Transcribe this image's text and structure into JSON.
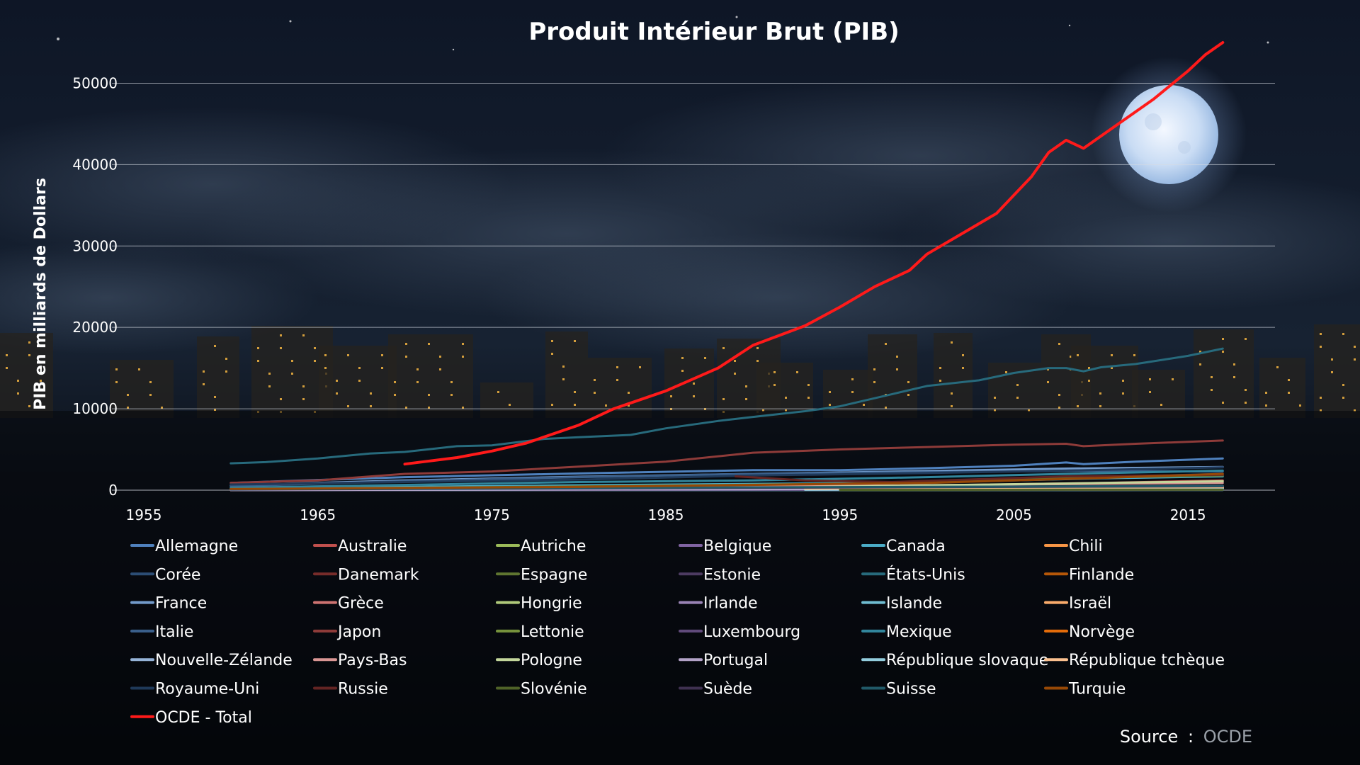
{
  "chart_data": {
    "type": "line",
    "title": "Produit Intérieur Brut (PIB)",
    "ylabel": "PIB en milliards de Dollars",
    "xlabel": "",
    "xlim": [
      1955,
      2020
    ],
    "ylim": [
      0,
      55000
    ],
    "x_ticks": [
      "1955",
      "1965",
      "1975",
      "1985",
      "1995",
      "2005",
      "2015"
    ],
    "y_ticks": [
      "0",
      "10000",
      "20000",
      "30000",
      "40000",
      "50000"
    ],
    "grid": true,
    "legend_position": "bottom",
    "source_label": "Source",
    "source_sep": ":",
    "source_value": "OCDE",
    "series": [
      {
        "name": "Allemagne",
        "color": "#4f81bd",
        "points": [
          [
            1960,
            900
          ],
          [
            1970,
            1600
          ],
          [
            1980,
            2050
          ],
          [
            1990,
            2450
          ],
          [
            1995,
            2450
          ],
          [
            2000,
            2700
          ],
          [
            2005,
            3000
          ],
          [
            2008,
            3400
          ],
          [
            2009,
            3200
          ],
          [
            2012,
            3500
          ],
          [
            2017,
            3900
          ]
        ]
      },
      {
        "name": "Australie",
        "color": "#c0504d",
        "points": [
          [
            1960,
            50
          ],
          [
            1980,
            200
          ],
          [
            2000,
            550
          ],
          [
            2010,
            900
          ],
          [
            2017,
            1200
          ]
        ]
      },
      {
        "name": "Autriche",
        "color": "#9bbb59",
        "points": [
          [
            1960,
            30
          ],
          [
            1990,
            200
          ],
          [
            2017,
            450
          ]
        ]
      },
      {
        "name": "Belgique",
        "color": "#8064a2",
        "points": [
          [
            1960,
            40
          ],
          [
            1990,
            250
          ],
          [
            2017,
            530
          ]
        ]
      },
      {
        "name": "Canada",
        "color": "#4bacc6",
        "points": [
          [
            1960,
            200
          ],
          [
            1980,
            600
          ],
          [
            2000,
            950
          ],
          [
            2010,
            1450
          ],
          [
            2017,
            1700
          ]
        ]
      },
      {
        "name": "Chili",
        "color": "#f79646",
        "points": [
          [
            1960,
            20
          ],
          [
            1990,
            100
          ],
          [
            2017,
            450
          ]
        ]
      },
      {
        "name": "Corée",
        "color": "#2c4d75",
        "points": [
          [
            1970,
            100
          ],
          [
            1990,
            550
          ],
          [
            2000,
            1000
          ],
          [
            2010,
            1600
          ],
          [
            2017,
            2000
          ]
        ]
      },
      {
        "name": "Danemark",
        "color": "#772c2a",
        "points": [
          [
            1960,
            30
          ],
          [
            1990,
            150
          ],
          [
            2017,
            300
          ]
        ]
      },
      {
        "name": "Espagne",
        "color": "#5f7530",
        "points": [
          [
            1960,
            150
          ],
          [
            1980,
            450
          ],
          [
            2000,
            900
          ],
          [
            2008,
            1500
          ],
          [
            2017,
            1800
          ]
        ]
      },
      {
        "name": "Estonie",
        "color": "#4d3b62",
        "points": [
          [
            1993,
            15
          ],
          [
            2017,
            45
          ]
        ]
      },
      {
        "name": "États-Unis",
        "color": "#276a7c",
        "points": [
          [
            1960,
            3300
          ],
          [
            1962,
            3450
          ],
          [
            1965,
            3900
          ],
          [
            1968,
            4500
          ],
          [
            1970,
            4700
          ],
          [
            1973,
            5400
          ],
          [
            1975,
            5500
          ],
          [
            1978,
            6300
          ],
          [
            1980,
            6500
          ],
          [
            1983,
            6800
          ],
          [
            1985,
            7600
          ],
          [
            1988,
            8500
          ],
          [
            1990,
            9000
          ],
          [
            1993,
            9700
          ],
          [
            1995,
            10300
          ],
          [
            1998,
            11800
          ],
          [
            2000,
            12800
          ],
          [
            2003,
            13500
          ],
          [
            2005,
            14400
          ],
          [
            2007,
            15000
          ],
          [
            2008,
            15000
          ],
          [
            2009,
            14600
          ],
          [
            2010,
            15100
          ],
          [
            2012,
            15500
          ],
          [
            2015,
            16500
          ],
          [
            2017,
            17400
          ]
        ]
      },
      {
        "name": "Finlande",
        "color": "#b65708",
        "points": [
          [
            1960,
            30
          ],
          [
            1990,
            150
          ],
          [
            2017,
            250
          ]
        ]
      },
      {
        "name": "France",
        "color": "#729aca",
        "points": [
          [
            1960,
            600
          ],
          [
            1970,
            1200
          ],
          [
            1980,
            1650
          ],
          [
            1990,
            2000
          ],
          [
            2000,
            2350
          ],
          [
            2008,
            2650
          ],
          [
            2017,
            2850
          ]
        ]
      },
      {
        "name": "Grèce",
        "color": "#cd7371",
        "points": [
          [
            1960,
            50
          ],
          [
            1990,
            200
          ],
          [
            2008,
            350
          ],
          [
            2017,
            280
          ]
        ]
      },
      {
        "name": "Hongrie",
        "color": "#afc97a",
        "points": [
          [
            1991,
            100
          ],
          [
            2017,
            260
          ]
        ]
      },
      {
        "name": "Irlande",
        "color": "#9983b5",
        "points": [
          [
            1960,
            15
          ],
          [
            1990,
            60
          ],
          [
            2017,
            350
          ]
        ]
      },
      {
        "name": "Islande",
        "color": "#6fbdd1",
        "points": [
          [
            1960,
            5
          ],
          [
            2017,
            17
          ]
        ]
      },
      {
        "name": "Israël",
        "color": "#f9ab6b",
        "points": [
          [
            1995,
            120
          ],
          [
            2017,
            320
          ]
        ]
      },
      {
        "name": "Italie",
        "color": "#3a5f8b",
        "points": [
          [
            1960,
            500
          ],
          [
            1970,
            1100
          ],
          [
            1980,
            1600
          ],
          [
            1990,
            2000
          ],
          [
            2000,
            2200
          ],
          [
            2008,
            2350
          ],
          [
            2017,
            2300
          ]
        ]
      },
      {
        "name": "Japon",
        "color": "#8e3b39",
        "points": [
          [
            1960,
            900
          ],
          [
            1965,
            1200
          ],
          [
            1970,
            2000
          ],
          [
            1975,
            2300
          ],
          [
            1980,
            2900
          ],
          [
            1985,
            3500
          ],
          [
            1990,
            4600
          ],
          [
            1995,
            5000
          ],
          [
            2000,
            5300
          ],
          [
            2005,
            5600
          ],
          [
            2008,
            5700
          ],
          [
            2009,
            5400
          ],
          [
            2012,
            5700
          ],
          [
            2017,
            6100
          ]
        ]
      },
      {
        "name": "Lettonie",
        "color": "#76923c",
        "points": [
          [
            1995,
            20
          ],
          [
            2017,
            50
          ]
        ]
      },
      {
        "name": "Luxembourg",
        "color": "#604a7b",
        "points": [
          [
            1960,
            5
          ],
          [
            2017,
            60
          ]
        ]
      },
      {
        "name": "Mexique",
        "color": "#31859c",
        "points": [
          [
            1960,
            300
          ],
          [
            1980,
            1000
          ],
          [
            1990,
            1200
          ],
          [
            2000,
            1600
          ],
          [
            2008,
            2000
          ],
          [
            2017,
            2400
          ]
        ]
      },
      {
        "name": "Norvège",
        "color": "#e46c0a",
        "points": [
          [
            1960,
            30
          ],
          [
            1990,
            150
          ],
          [
            2017,
            350
          ]
        ]
      },
      {
        "name": "Nouvelle-Zélande",
        "color": "#95b3d7",
        "points": [
          [
            1960,
            20
          ],
          [
            2017,
            190
          ]
        ]
      },
      {
        "name": "Pays-Bas",
        "color": "#d99694",
        "points": [
          [
            1960,
            100
          ],
          [
            1990,
            450
          ],
          [
            2017,
            900
          ]
        ]
      },
      {
        "name": "Pologne",
        "color": "#c3d69b",
        "points": [
          [
            1990,
            300
          ],
          [
            2017,
            1100
          ]
        ]
      },
      {
        "name": "Portugal",
        "color": "#b3a2c7",
        "points": [
          [
            1960,
            20
          ],
          [
            1990,
            120
          ],
          [
            2017,
            320
          ]
        ]
      },
      {
        "name": "République slovaque",
        "color": "#93cddd",
        "points": [
          [
            1993,
            50
          ],
          [
            2017,
            170
          ]
        ]
      },
      {
        "name": "République tchèque",
        "color": "#fac08f",
        "points": [
          [
            1993,
            170
          ],
          [
            2017,
            370
          ]
        ]
      },
      {
        "name": "Royaume-Uni",
        "color": "#1f3959",
        "points": [
          [
            1960,
            700
          ],
          [
            1970,
            1000
          ],
          [
            1980,
            1300
          ],
          [
            1990,
            1800
          ],
          [
            2000,
            2100
          ],
          [
            2008,
            2400
          ],
          [
            2017,
            2800
          ]
        ]
      },
      {
        "name": "Russie",
        "color": "#632423",
        "points": [
          [
            1989,
            1700
          ],
          [
            1993,
            1200
          ],
          [
            1998,
            1000
          ],
          [
            2008,
            1700
          ],
          [
            2017,
            1900
          ]
        ]
      },
      {
        "name": "Slovénie",
        "color": "#4f6228",
        "points": [
          [
            1995,
            40
          ],
          [
            2017,
            70
          ]
        ]
      },
      {
        "name": "Suède",
        "color": "#3f3151",
        "points": [
          [
            1960,
            80
          ],
          [
            1990,
            300
          ],
          [
            2017,
            480
          ]
        ]
      },
      {
        "name": "Suisse",
        "color": "#215968",
        "points": [
          [
            1960,
            100
          ],
          [
            1990,
            350
          ],
          [
            2017,
            520
          ]
        ]
      },
      {
        "name": "Turquie",
        "color": "#974806",
        "points": [
          [
            1960,
            150
          ],
          [
            1980,
            400
          ],
          [
            2000,
            900
          ],
          [
            2010,
            1500
          ],
          [
            2017,
            2000
          ]
        ]
      },
      {
        "name": "OCDE - Total",
        "color": "#ff1a1a",
        "points": [
          [
            1970,
            3200
          ],
          [
            1973,
            4000
          ],
          [
            1975,
            4800
          ],
          [
            1977,
            5800
          ],
          [
            1980,
            8000
          ],
          [
            1982,
            10000
          ],
          [
            1985,
            12200
          ],
          [
            1988,
            15000
          ],
          [
            1990,
            17800
          ],
          [
            1993,
            20200
          ],
          [
            1995,
            22500
          ],
          [
            1997,
            25000
          ],
          [
            1999,
            27000
          ],
          [
            2000,
            29000
          ],
          [
            2002,
            31500
          ],
          [
            2004,
            34000
          ],
          [
            2006,
            38500
          ],
          [
            2007,
            41500
          ],
          [
            2008,
            43000
          ],
          [
            2009,
            42000
          ],
          [
            2011,
            45000
          ],
          [
            2013,
            48000
          ],
          [
            2015,
            51500
          ],
          [
            2016,
            53500
          ],
          [
            2017,
            55000
          ]
        ]
      }
    ]
  }
}
